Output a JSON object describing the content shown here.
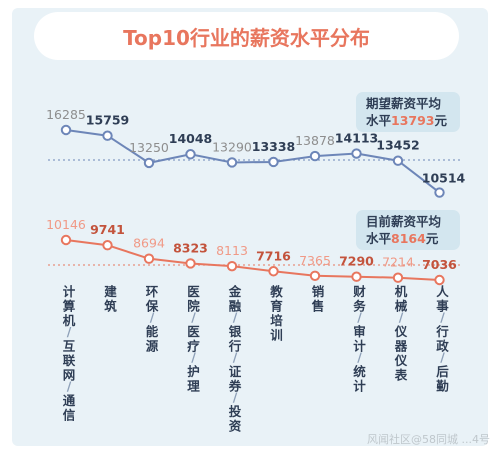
{
  "chart_data": {
    "type": "line",
    "title": "Top10行业的薪资水平分布",
    "categories": [
      "计算机/互联网/通信",
      "建筑",
      "环保/能源",
      "医院/医疗/护理",
      "金融/银行/证券/投资",
      "教育培训",
      "销售",
      "财务/审计/统计",
      "机械/仪器仪表",
      "人事/行政/后勤"
    ],
    "series": [
      {
        "values": [
          16285,
          15759,
          13250,
          14048,
          13290,
          13338,
          13878,
          14113,
          13452,
          10514
        ],
        "color": "#6d86b8"
      },
      {
        "values": [
          10146,
          9741,
          8694,
          8323,
          8113,
          7716,
          7365,
          7290,
          7214,
          7036
        ],
        "color": "#e8765e"
      }
    ],
    "annotations": [
      {
        "line1": "期望薪资平均",
        "line2_prefix": "水平",
        "value": "13793",
        "unit": "元"
      },
      {
        "line1": "目前薪资平均",
        "line2_prefix": "水平",
        "value": "8164",
        "unit": "元"
      }
    ],
    "label_colors": {
      "dark": "#2f3e55",
      "light": "#8e8e8e",
      "accent": "#e8765e",
      "note_bg": "#d3e6ef"
    }
  },
  "watermark": "风闻社区@58同城 ...4号"
}
